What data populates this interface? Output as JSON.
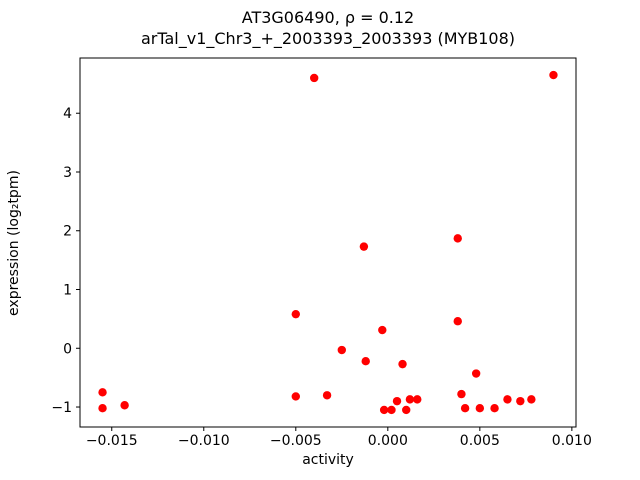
{
  "figure": {
    "title_line1": "AT3G06490, ρ = 0.12",
    "title_line2": "arTal_v1_Chr3_+_2003393_2003393 (MYB108)"
  },
  "chart_data": {
    "type": "scatter",
    "title": "AT3G06490, ρ = 0.12",
    "subtitle": "arTal_v1_Chr3_+_2003393_2003393 (MYB108)",
    "xlabel": "activity",
    "ylabel": "expression (log₂tpm)",
    "marker_color": "#ff0000",
    "background_color": "#ffffff",
    "spine_color": "#000000",
    "grid": false,
    "legend": "none",
    "xlim": [
      -0.016725,
      0.010225
    ],
    "ylim": [
      -1.34,
      4.94
    ],
    "x_ticks": [
      {
        "value": -0.015,
        "label": "−0.015"
      },
      {
        "value": -0.01,
        "label": "−0.010"
      },
      {
        "value": -0.005,
        "label": "−0.005"
      },
      {
        "value": 0.0,
        "label": "0.000"
      },
      {
        "value": 0.005,
        "label": "0.005"
      },
      {
        "value": 0.01,
        "label": "0.010"
      }
    ],
    "y_ticks": [
      {
        "value": -1,
        "label": "−1"
      },
      {
        "value": 0,
        "label": "0"
      },
      {
        "value": 1,
        "label": "1"
      },
      {
        "value": 2,
        "label": "2"
      },
      {
        "value": 3,
        "label": "3"
      },
      {
        "value": 4,
        "label": "4"
      }
    ],
    "points": [
      [
        -0.0155,
        -0.75
      ],
      [
        -0.0155,
        -1.02
      ],
      [
        -0.0143,
        -0.97
      ],
      [
        -0.005,
        0.58
      ],
      [
        -0.005,
        -0.82
      ],
      [
        -0.004,
        4.6
      ],
      [
        -0.0033,
        -0.8
      ],
      [
        -0.0025,
        -0.03
      ],
      [
        -0.0013,
        1.73
      ],
      [
        -0.0012,
        -0.22
      ],
      [
        -0.0003,
        0.31
      ],
      [
        -0.0002,
        -1.05
      ],
      [
        0.0002,
        -1.05
      ],
      [
        0.0005,
        -0.9
      ],
      [
        0.0008,
        -0.27
      ],
      [
        0.001,
        -1.05
      ],
      [
        0.0012,
        -0.87
      ],
      [
        0.0016,
        -0.87
      ],
      [
        0.0038,
        1.87
      ],
      [
        0.0038,
        0.46
      ],
      [
        0.004,
        -0.78
      ],
      [
        0.0042,
        -1.02
      ],
      [
        0.0048,
        -0.43
      ],
      [
        0.005,
        -1.02
      ],
      [
        0.0058,
        -1.02
      ],
      [
        0.0065,
        -0.87
      ],
      [
        0.0072,
        -0.9
      ],
      [
        0.0078,
        -0.87
      ],
      [
        0.009,
        4.65
      ]
    ]
  }
}
